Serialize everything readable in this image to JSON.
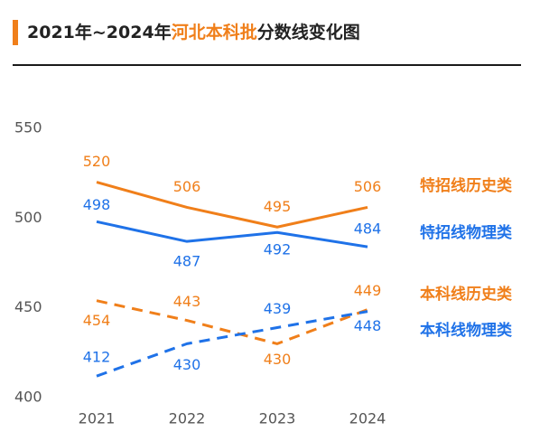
{
  "header": {
    "title_prefix": "2021年~2024年",
    "title_highlight": "河北本科批",
    "title_suffix": "分数线变化图"
  },
  "colors": {
    "accent": "#f07f1a",
    "blue": "#1f72e8",
    "axis_text": "#555555",
    "title": "#222222"
  },
  "chart_data": {
    "type": "line",
    "x": [
      "2021",
      "2022",
      "2023",
      "2024"
    ],
    "ylim": [
      400,
      550
    ],
    "yticks": [
      400,
      450,
      500,
      550
    ],
    "grid": false,
    "legend": "right, labels at line ends",
    "series": [
      {
        "name": "特招线历史类",
        "values": [
          520,
          506,
          495,
          506
        ],
        "color": "#f07f1a",
        "style": "solid"
      },
      {
        "name": "特招线物理类",
        "values": [
          498,
          487,
          492,
          484
        ],
        "color": "#1f72e8",
        "style": "solid"
      },
      {
        "name": "本科线历史类",
        "values": [
          454,
          443,
          430,
          449
        ],
        "color": "#f07f1a",
        "style": "dashed"
      },
      {
        "name": "本科线物理类",
        "values": [
          412,
          430,
          439,
          448
        ],
        "color": "#1f72e8",
        "style": "dashed"
      }
    ]
  }
}
